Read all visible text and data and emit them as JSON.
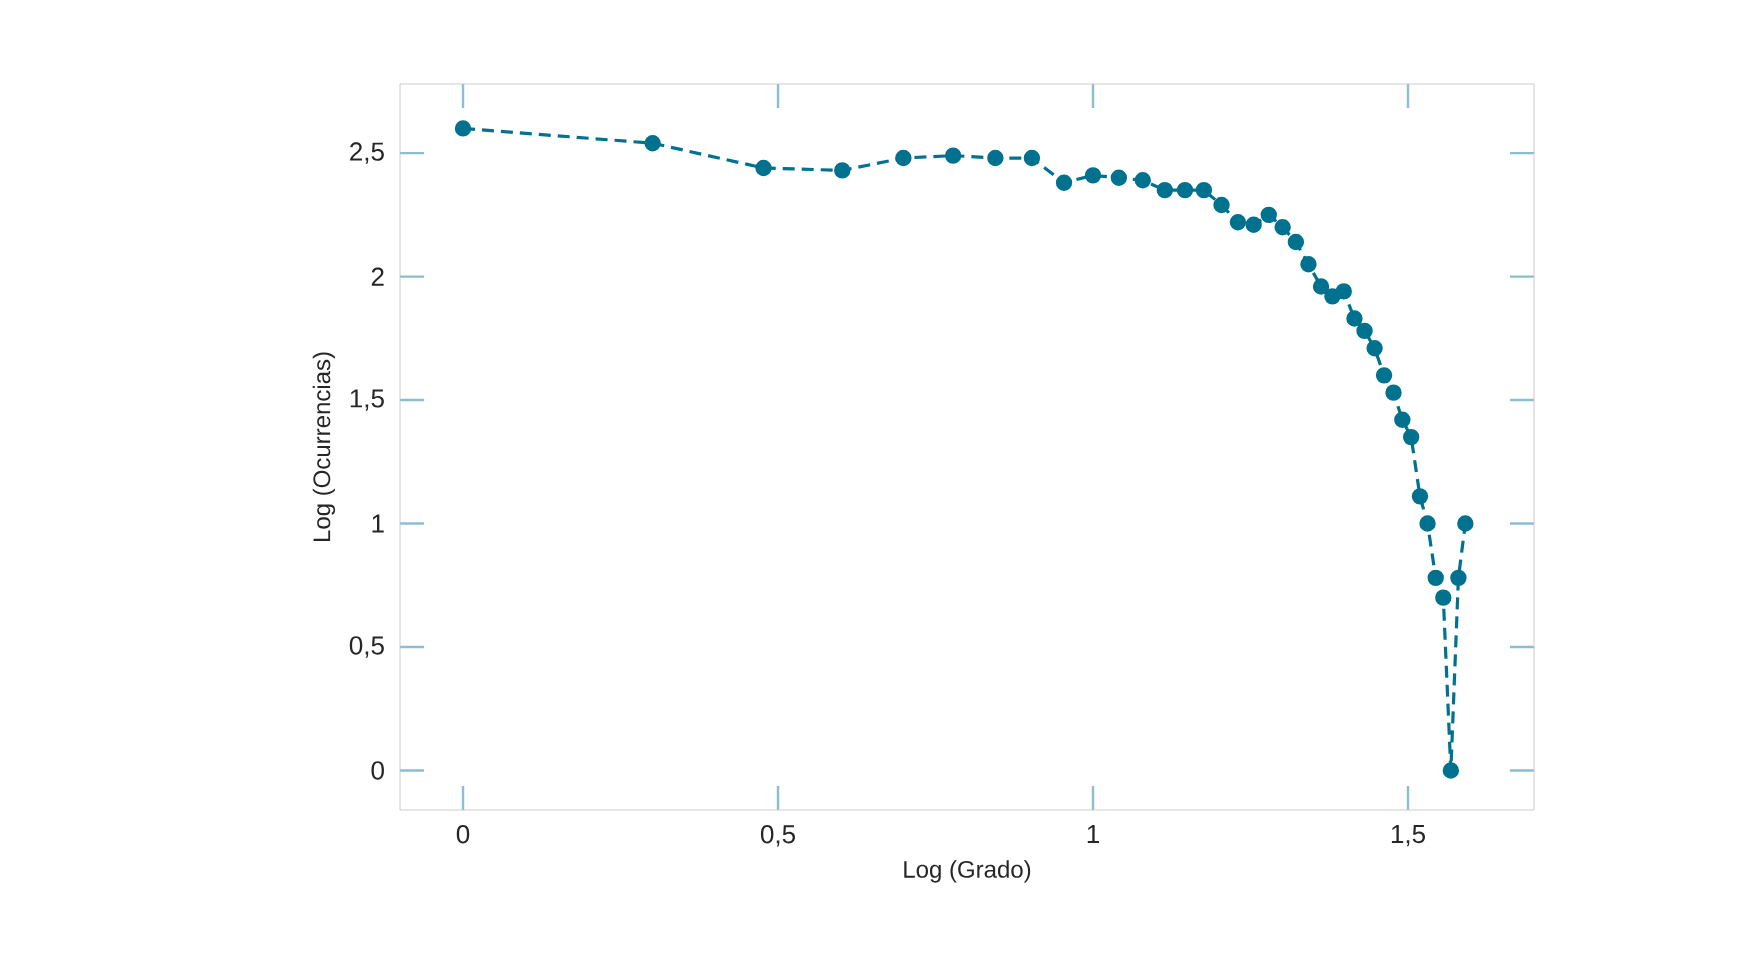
{
  "chart_data": {
    "type": "line",
    "xlabel": "Log (Grado)",
    "ylabel": "Log (Ocurrencias)",
    "x": [
      0,
      0.301,
      0.477,
      0.602,
      0.699,
      0.778,
      0.845,
      0.903,
      0.954,
      1.0,
      1.041,
      1.079,
      1.114,
      1.146,
      1.176,
      1.204,
      1.23,
      1.255,
      1.279,
      1.301,
      1.322,
      1.342,
      1.362,
      1.38,
      1.398,
      1.415,
      1.431,
      1.447,
      1.462,
      1.477,
      1.491,
      1.505,
      1.519,
      1.531,
      1.544,
      1.556,
      1.568,
      1.58,
      1.591
    ],
    "series": [
      {
        "color": "#00718e",
        "values": [
          2.6,
          2.54,
          2.44,
          2.43,
          2.48,
          2.49,
          2.48,
          2.48,
          2.38,
          2.41,
          2.4,
          2.39,
          2.35,
          2.35,
          2.35,
          2.29,
          2.22,
          2.21,
          2.25,
          2.2,
          2.14,
          2.05,
          1.96,
          1.92,
          1.94,
          1.83,
          1.78,
          1.71,
          1.6,
          1.53,
          1.42,
          1.35,
          1.11,
          1.0,
          0.78,
          0.7,
          0,
          0.78,
          1.0
        ]
      }
    ],
    "xlim": [
      -0.1,
      1.7
    ],
    "ylim": [
      -0.16,
      2.78
    ],
    "xticks": [
      0,
      {
        "value": 0.5,
        "label": "0,5"
      },
      1,
      {
        "value": 1.5,
        "label": "1,5"
      }
    ],
    "yticks": [
      0,
      {
        "value": 0.5,
        "label": "0,5"
      },
      1,
      {
        "value": 1.5,
        "label": "1,5"
      },
      2,
      {
        "value": 2.5,
        "label": "2,5"
      }
    ],
    "grid": false,
    "marker": "circle",
    "line_style": "dashed"
  }
}
